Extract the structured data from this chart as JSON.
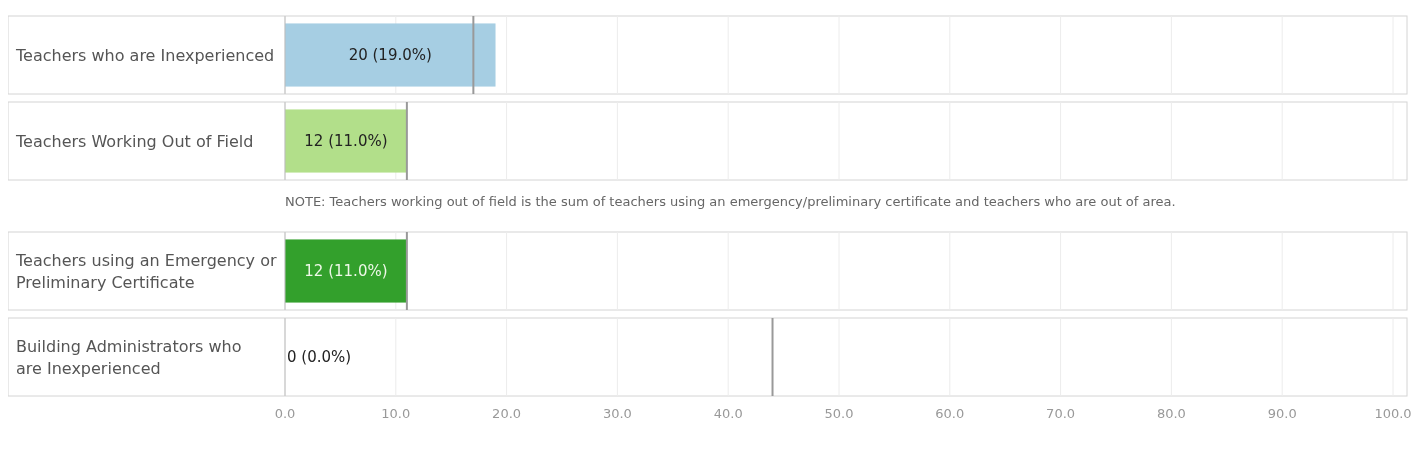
{
  "chart_data": [
    {
      "type": "bar",
      "orientation": "horizontal",
      "categories": [
        "Teachers who are Inexperienced"
      ],
      "values": [
        19.0
      ],
      "value_labels": [
        "20 (19.0%)"
      ],
      "color": "#a6cee3",
      "xlim": [
        0,
        100
      ],
      "xticks": [
        0,
        10,
        20,
        30,
        40,
        50,
        60,
        70,
        80,
        90,
        100
      ],
      "grid": "x",
      "tick_labels": "y",
      "ref_lines": [
        {
          "axis": "x",
          "value": 17,
          "color": "#999999"
        }
      ]
    },
    {
      "type": "bar",
      "orientation": "horizontal",
      "categories": [
        "Teachers Working Out of Field"
      ],
      "values": [
        11.0
      ],
      "value_labels": [
        "12 (11.0%)"
      ],
      "color": "#b2df8a",
      "xlim": [
        0,
        100
      ],
      "xticks": [
        0,
        10,
        20,
        30,
        40,
        50,
        60,
        70,
        80,
        90,
        100
      ],
      "grid": "x",
      "tick_labels": "y",
      "ref_lines": [
        {
          "axis": "x",
          "value": 11,
          "color": "#999999"
        }
      ],
      "annotations": [
        "NOTE: Teachers working out of field is the sum of teachers using an emergency/preliminary certificate and teachers who are out of area."
      ]
    },
    {
      "type": "bar",
      "orientation": "horizontal",
      "categories": [
        "Teachers using an Emergency or Preliminary Certificate"
      ],
      "values": [
        11.0
      ],
      "value_labels": [
        "12 (11.0%)"
      ],
      "color": "#33a02c",
      "xlim": [
        0,
        100
      ],
      "xticks": [
        0,
        10,
        20,
        30,
        40,
        50,
        60,
        70,
        80,
        90,
        100
      ],
      "grid": "x",
      "tick_labels": "y",
      "ref_lines": [
        {
          "axis": "x",
          "value": 11,
          "color": "#999999"
        }
      ]
    },
    {
      "type": "bar",
      "orientation": "horizontal",
      "categories": [
        "Building Administrators who are Inexperienced"
      ],
      "values": [
        0.0
      ],
      "value_labels": [
        "0 (0.0%)"
      ],
      "color": "#a6cee3",
      "xlim": [
        0,
        100
      ],
      "xticks": [
        {
          "value": 0,
          "label": "0.0"
        },
        {
          "value": 10,
          "label": "10.0"
        },
        {
          "value": 20,
          "label": "20.0"
        },
        {
          "value": 30,
          "label": "30.0"
        },
        {
          "value": 40,
          "label": "40.0"
        },
        {
          "value": 50,
          "label": "50.0"
        },
        {
          "value": 60,
          "label": "60.0"
        },
        {
          "value": 70,
          "label": "70.0"
        },
        {
          "value": 80,
          "label": "80.0"
        },
        {
          "value": 90,
          "label": "90.0"
        },
        {
          "value": 100,
          "label": "100.0"
        }
      ],
      "grid": "x",
      "ref_lines": [
        {
          "axis": "x",
          "value": 44,
          "color": "#999999"
        }
      ]
    }
  ]
}
